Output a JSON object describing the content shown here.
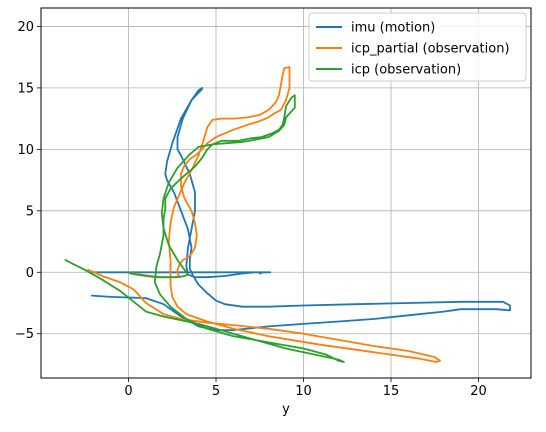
{
  "chart_data": {
    "type": "line",
    "xlabel": "y",
    "ylabel": "",
    "title": "",
    "xlim": [
      -5,
      23
    ],
    "ylim": [
      -8.6,
      21.5
    ],
    "xticks": [
      0,
      5,
      10,
      15,
      20
    ],
    "yticks": [
      -5,
      0,
      5,
      10,
      15,
      20
    ],
    "grid": true,
    "legend_position": "top-right",
    "series": [
      {
        "name": "imu (motion)",
        "color": "#1f77b4",
        "x": [
          -2.1,
          -1.0,
          1.0,
          2.0,
          3.0,
          4.0,
          5.0,
          6.0,
          8.0,
          10.0,
          12.0,
          14.0,
          16.0,
          18.0,
          19.0,
          21.0,
          21.8,
          21.8,
          21.4,
          19.0,
          16.0,
          13.0,
          10.0,
          8.0,
          6.5,
          5.5,
          5.0,
          4.5,
          4.0,
          3.7,
          3.5,
          3.5,
          3.6,
          3.4,
          3.0,
          2.6,
          2.2,
          2.1,
          2.2,
          2.5,
          3.0,
          3.6,
          4.0,
          4.2,
          4.2,
          4.0,
          3.6,
          3.1,
          2.8,
          2.8,
          3.0,
          3.5,
          3.8,
          3.8,
          3.6,
          3.4,
          3.3,
          3.4,
          3.8,
          4.5,
          5.5,
          6.5,
          7.2,
          7.6,
          7.7,
          7.5,
          7.6,
          7.8,
          8.0,
          8.1,
          8.0,
          7.7,
          7.5,
          7.8,
          7.7,
          7.2,
          6.5,
          5.5,
          4.5,
          3.6,
          3.2,
          3.0,
          2.8,
          3.0,
          3.4,
          3.6,
          3.6,
          3.5,
          3.3,
          3.0,
          2.7,
          2.4,
          2.2,
          2.0,
          1.8,
          1.5,
          1.0,
          0.5,
          0.0,
          -0.5,
          -1.0,
          -1.5,
          -2.1
        ],
        "y": [
          -1.9,
          -2.0,
          -2.1,
          -2.6,
          -3.6,
          -4.4,
          -4.7,
          -4.7,
          -4.4,
          -4.2,
          -4.0,
          -3.8,
          -3.5,
          -3.2,
          -3.0,
          -3.0,
          -3.1,
          -2.7,
          -2.4,
          -2.4,
          -2.5,
          -2.6,
          -2.7,
          -2.8,
          -2.8,
          -2.6,
          -2.3,
          -1.7,
          -1.0,
          -0.3,
          0.3,
          1.0,
          2.0,
          3.5,
          5.0,
          6.5,
          7.5,
          8.0,
          9.0,
          10.5,
          12.5,
          14.0,
          14.6,
          14.9,
          15.0,
          14.8,
          14.0,
          12.5,
          11.0,
          10.0,
          9.5,
          8.0,
          6.5,
          5.0,
          3.5,
          2.0,
          0.5,
          -0.2,
          -0.4,
          -0.4,
          -0.3,
          -0.1,
          0.0,
          0.0,
          0.0,
          -0.1,
          0.0,
          0.0,
          0.0,
          0.0,
          0.0,
          0.0,
          0.0,
          0.0,
          0.0,
          0.0,
          0.0,
          0.0,
          0.0,
          0.0,
          0.0,
          0.0,
          0.0,
          0.0,
          0.0,
          0.0,
          0.0,
          0.0,
          0.0,
          0.0,
          0.0,
          0.0,
          0.0,
          0.0,
          0.0,
          0.0,
          0.0,
          0.0,
          0.0,
          0.0,
          0.0,
          0.0,
          0.0
        ]
      },
      {
        "name": "icp_partial (observation)",
        "color": "#ff7f0e",
        "x": [
          -2.3,
          -1.5,
          -0.5,
          0.3,
          1.0,
          2.0,
          3.0,
          4.5,
          6.0,
          8.0,
          10.0,
          12.0,
          14.0,
          16.0,
          17.5,
          17.8,
          17.6,
          16.5,
          14.0,
          11.0,
          8.0,
          6.0,
          4.5,
          3.3,
          2.8,
          2.5,
          2.4,
          2.4,
          2.4,
          2.3,
          2.4,
          2.6,
          2.9,
          3.2,
          3.6,
          4.0,
          4.3,
          4.5,
          4.8,
          5.3,
          6.0,
          6.8,
          7.5,
          8.0,
          8.4,
          8.6,
          8.7,
          8.8,
          8.9,
          9.2,
          9.2,
          9.0,
          8.7,
          8.3,
          8.0,
          7.5,
          6.8,
          6.0,
          5.0,
          4.5,
          4.2,
          3.9,
          3.5,
          3.2,
          3.0,
          3.0,
          3.2,
          3.6,
          3.8,
          3.9,
          3.8,
          3.6,
          3.4,
          3.1,
          2.9,
          2.8,
          2.8,
          2.9,
          2.7,
          2.3,
          1.8,
          1.3,
          0.7,
          0.2
        ],
        "y": [
          0.2,
          -0.3,
          -0.8,
          -1.4,
          -2.5,
          -3.4,
          -3.8,
          -4.1,
          -4.3,
          -4.6,
          -5.0,
          -5.5,
          -6.0,
          -6.4,
          -6.9,
          -7.2,
          -7.3,
          -7.0,
          -6.5,
          -5.9,
          -5.2,
          -4.6,
          -4.0,
          -3.4,
          -2.8,
          -2.0,
          -1.0,
          0.0,
          1.0,
          2.5,
          4.0,
          5.3,
          6.3,
          7.3,
          8.3,
          9.5,
          10.8,
          11.8,
          12.4,
          12.5,
          12.5,
          12.6,
          12.8,
          13.2,
          13.8,
          14.4,
          15.2,
          16.0,
          16.6,
          16.7,
          15.0,
          14.0,
          13.2,
          12.9,
          12.6,
          12.3,
          12.0,
          11.6,
          11.0,
          10.5,
          10.0,
          9.6,
          9.2,
          8.7,
          8.0,
          7.0,
          6.0,
          5.0,
          4.0,
          3.0,
          2.0,
          1.5,
          1.2,
          1.0,
          0.6,
          0.2,
          -0.1,
          -0.3,
          -0.4,
          -0.4,
          -0.4,
          -0.3,
          -0.2,
          -0.1
        ]
      },
      {
        "name": "icp (observation)",
        "color": "#2ca02c",
        "x": [
          -3.6,
          -3.2,
          -2.5,
          -1.5,
          -0.5,
          0.3,
          1.0,
          2.0,
          3.0,
          4.0,
          5.0,
          6.0,
          7.0,
          8.0,
          9.0,
          10.0,
          11.0,
          12.0,
          12.3,
          12.0,
          11.3,
          10.0,
          8.0,
          6.0,
          4.5,
          3.3,
          2.4,
          1.8,
          1.5,
          1.6,
          1.8,
          2.0,
          2.0,
          2.1,
          2.1,
          2.4,
          2.9,
          3.3,
          3.8,
          4.2,
          4.5,
          4.8,
          5.3,
          5.8,
          6.3,
          7.0,
          7.6,
          8.2,
          8.6,
          8.8,
          8.9,
          9.0,
          9.3,
          9.5,
          9.5,
          9.0,
          8.9,
          8.6,
          8.0,
          7.3,
          6.5,
          5.6,
          4.8,
          4.0,
          3.5,
          2.8,
          2.3,
          2.0,
          1.9,
          2.0,
          2.3,
          2.8,
          3.2,
          3.4,
          3.2,
          2.8,
          2.4,
          2.0,
          1.6,
          1.0,
          0.5,
          0.1,
          0.0
        ],
        "y": [
          1.0,
          0.7,
          0.2,
          -0.6,
          -1.5,
          -2.4,
          -3.2,
          -3.6,
          -3.9,
          -4.2,
          -4.6,
          -5.0,
          -5.4,
          -5.8,
          -6.2,
          -6.5,
          -6.8,
          -7.1,
          -7.3,
          -7.2,
          -6.7,
          -6.2,
          -5.7,
          -5.2,
          -4.6,
          -3.8,
          -2.8,
          -1.8,
          -0.8,
          0.5,
          1.5,
          3.0,
          4.3,
          5.2,
          6.0,
          6.8,
          7.5,
          8.0,
          8.6,
          9.3,
          10.0,
          10.4,
          10.7,
          10.7,
          10.7,
          10.9,
          11.0,
          11.3,
          11.6,
          12.0,
          12.6,
          13.5,
          14.2,
          14.4,
          13.4,
          12.6,
          12.0,
          11.5,
          11.0,
          10.8,
          10.6,
          10.5,
          10.4,
          10.2,
          9.6,
          8.5,
          7.3,
          6.0,
          4.8,
          3.6,
          2.2,
          1.0,
          0.2,
          -0.2,
          -0.3,
          -0.4,
          -0.4,
          -0.4,
          -0.4,
          -0.3,
          -0.2,
          -0.1,
          0.0
        ]
      }
    ]
  }
}
